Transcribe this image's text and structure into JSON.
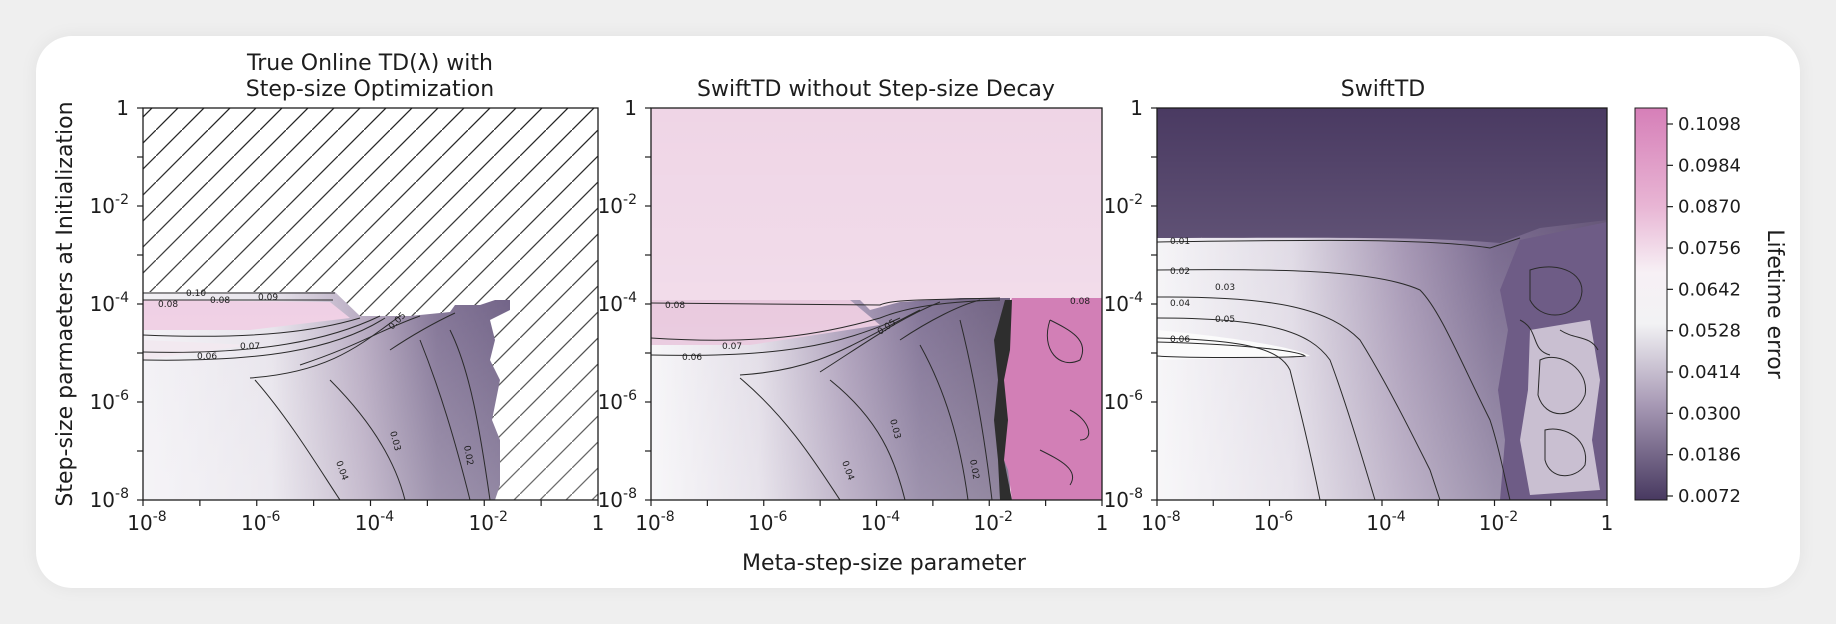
{
  "figure": {
    "xlabel": "Meta-step-size parameter",
    "ylabel": "Step-size parmaeters at Initialization",
    "colorbar_label": "Lifetime error",
    "colors": {
      "low": "#4a3a62",
      "mid": "#f6f6f6",
      "high": "#d67fb8"
    }
  },
  "chart_data": [
    {
      "type": "heatmap",
      "title_lines": [
        "True Online TD(λ) with",
        "Step-size Optimization"
      ],
      "x_scale": "log",
      "y_scale": "log",
      "xlim": [
        1e-08,
        1
      ],
      "ylim": [
        1e-08,
        1
      ],
      "xticks": [
        1e-08,
        1e-06,
        0.0001,
        0.01,
        1
      ],
      "yticks": [
        1e-08,
        1e-06,
        0.0001,
        0.01,
        1
      ],
      "diverged_region": "hatched",
      "contour_levels": [
        0.02,
        0.03,
        0.04,
        0.05,
        0.06,
        0.07,
        0.08,
        0.09,
        0.1
      ],
      "contour_labels": [
        "0.10",
        "0.08",
        "0.09",
        "0.08",
        "0.07",
        "0.06",
        "0.05",
        "0.04",
        "0.03",
        "0.02"
      ]
    },
    {
      "type": "heatmap",
      "title_lines": [
        "SwiftTD without Step-size Decay"
      ],
      "x_scale": "log",
      "y_scale": "log",
      "xlim": [
        1e-08,
        1
      ],
      "ylim": [
        1e-08,
        1
      ],
      "xticks": [
        1e-08,
        1e-06,
        0.0001,
        0.01,
        1
      ],
      "yticks": [
        1e-08,
        1e-06,
        0.0001,
        0.01,
        1
      ],
      "contour_levels": [
        0.02,
        0.03,
        0.04,
        0.05,
        0.06,
        0.07,
        0.08
      ],
      "contour_labels": [
        "0.08",
        "0.08",
        "0.07",
        "0.06",
        "0.05",
        "0.04",
        "0.03",
        "0.02"
      ]
    },
    {
      "type": "heatmap",
      "title_lines": [
        "SwiftTD"
      ],
      "x_scale": "log",
      "y_scale": "log",
      "xlim": [
        1e-08,
        1
      ],
      "ylim": [
        1e-08,
        1
      ],
      "xticks": [
        1e-08,
        1e-06,
        0.0001,
        0.01,
        1
      ],
      "yticks": [
        1e-08,
        1e-06,
        0.0001,
        0.01,
        1
      ],
      "contour_levels": [
        0.01,
        0.02,
        0.03,
        0.04,
        0.05,
        0.06
      ],
      "contour_labels": [
        "0.01",
        "0.02",
        "0.03",
        "0.04",
        "0.05",
        "0.06"
      ]
    }
  ],
  "colorbar": {
    "ticks": [
      "0.1098",
      "0.0984",
      "0.0870",
      "0.0756",
      "0.0642",
      "0.0528",
      "0.0414",
      "0.0300",
      "0.0186",
      "0.0072"
    ]
  },
  "x_tick_labels": [
    {
      "base": "10",
      "exp": "-8"
    },
    {
      "base": "10",
      "exp": "-6"
    },
    {
      "base": "10",
      "exp": "-4"
    },
    {
      "base": "10",
      "exp": "-2"
    },
    {
      "base": "1",
      "exp": ""
    }
  ],
  "y_tick_labels": [
    {
      "base": "1",
      "exp": ""
    },
    {
      "base": "10",
      "exp": "-2"
    },
    {
      "base": "10",
      "exp": "-4"
    },
    {
      "base": "10",
      "exp": "-6"
    },
    {
      "base": "10",
      "exp": "-8"
    }
  ]
}
